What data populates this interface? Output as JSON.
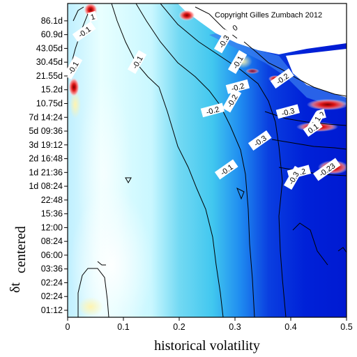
{
  "chart_data": {
    "type": "heatmap",
    "title": "",
    "copyright": "Copyright Gilles Zumbach 2012",
    "xlabel": "historical volatility",
    "ylabel_main": "δt",
    "ylabel_sub": "centered",
    "xlim": [
      0,
      0.5
    ],
    "x_ticks": [
      "0",
      "0.1",
      "0.2",
      "0.3",
      "0.4",
      "0.5"
    ],
    "y_ticks": [
      "01:12",
      "02:24",
      "02:24",
      "03:36",
      "06:00",
      "08:24",
      "12:00",
      "15:36",
      "22:48",
      "1d 08:24",
      "1d 21:36",
      "2d 16:48",
      "3d 19:12",
      "5d 09:36",
      "7d 14:24",
      "10.75d",
      "15.2d",
      "21.55d",
      "30.45d",
      "43.05d",
      "60.9d",
      "86.1d"
    ],
    "contour_labels": [
      {
        "text": "-0.1",
        "vol": 0.01,
        "row": 17.6
      },
      {
        "text": "-0.1",
        "vol": 0.03,
        "row": 20.2
      },
      {
        "text": "1",
        "vol": 0.045,
        "row": 21.3
      },
      {
        "text": "-0.1",
        "vol": 0.125,
        "row": 18.0
      },
      {
        "text": "-0.1",
        "vol": 0.285,
        "row": 10.2
      },
      {
        "text": "-0.2",
        "vol": 0.26,
        "row": 14.5
      },
      {
        "text": "-0.2",
        "vol": 0.295,
        "row": 15.2
      },
      {
        "text": "-0.3",
        "vol": 0.345,
        "row": 12.3
      },
      {
        "text": "-0.2",
        "vol": 0.305,
        "row": 16.2
      },
      {
        "text": "-0.3",
        "vol": 0.28,
        "row": 19.5
      },
      {
        "text": "-0.2",
        "vol": 0.385,
        "row": 16.8
      },
      {
        "text": "-0.3",
        "vol": 0.395,
        "row": 14.4
      },
      {
        "text": "-0.1",
        "vol": 0.305,
        "row": 18.0
      },
      {
        "text": "0",
        "vol": 0.3,
        "row": 20.5
      },
      {
        "text": "0",
        "vol": 0.455,
        "row": 14.2
      },
      {
        "text": "0.1",
        "vol": 0.445,
        "row": 13.7
      },
      {
        "text": "0.1",
        "vol": 0.44,
        "row": 13.2
      },
      {
        "text": "-0.2",
        "vol": 0.415,
        "row": 10.0
      },
      {
        "text": "-0.3",
        "vol": 0.405,
        "row": 9.6
      },
      {
        "text": "-0.23",
        "vol": 0.465,
        "row": 10.2
      }
    ]
  }
}
